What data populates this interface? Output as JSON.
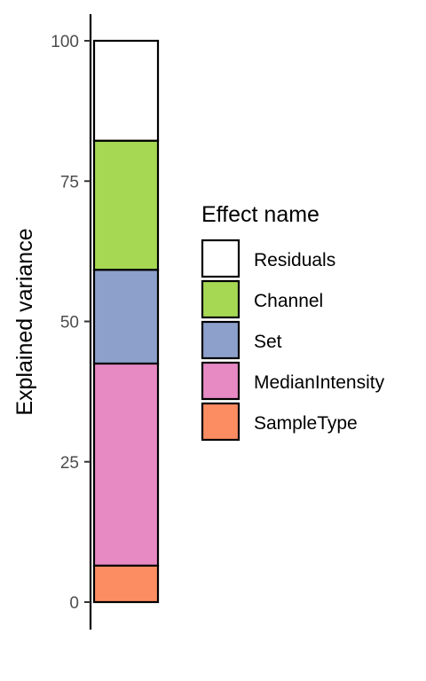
{
  "chart_data": {
    "type": "bar",
    "stacked": true,
    "categories": [
      ""
    ],
    "ylabel": "Explained variance",
    "xlabel": "",
    "ylim": [
      0,
      100
    ],
    "yticks": [
      0,
      25,
      50,
      75,
      100
    ],
    "yticks_text": [
      "0",
      "25",
      "50",
      "75",
      "100"
    ],
    "grid": false,
    "legend": {
      "title": "Effect name",
      "placement": "right"
    },
    "series": [
      {
        "name": "SampleType",
        "values": [
          6.5
        ],
        "color": "#FC8D62"
      },
      {
        "name": "MedianIntensity",
        "values": [
          36.0
        ],
        "color": "#E78AC3"
      },
      {
        "name": "Set",
        "values": [
          16.7
        ],
        "color": "#8DA0CB"
      },
      {
        "name": "Channel",
        "values": [
          23.0
        ],
        "color": "#A6D854"
      },
      {
        "name": "Residuals",
        "values": [
          17.8
        ],
        "color": "#FFFFFF"
      }
    ],
    "legend_order": [
      "Residuals",
      "Channel",
      "Set",
      "MedianIntensity",
      "SampleType"
    ]
  }
}
